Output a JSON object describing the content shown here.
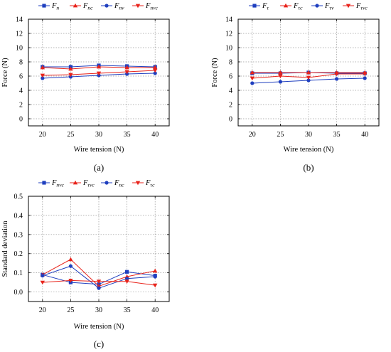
{
  "chart_data": [
    {
      "type": "line",
      "caption": "(a)",
      "xlabel": "Wire tension (N)",
      "ylabel": "Force (N)",
      "x": [
        20,
        25,
        30,
        35,
        40
      ],
      "xlim": [
        17.5,
        42.5
      ],
      "ylim": [
        -1,
        14
      ],
      "yticks": [
        0,
        2,
        4,
        6,
        8,
        10,
        12,
        14
      ],
      "grid": true,
      "legend": "top",
      "series": [
        {
          "name": "F",
          "sub": "n",
          "color": "#1f3fbf",
          "marker": "square",
          "values": [
            7.3,
            7.3,
            7.5,
            7.4,
            7.3
          ]
        },
        {
          "name": "F",
          "sub": "nc",
          "color": "#e8231b",
          "marker": "triangle-up",
          "values": [
            7.2,
            7.0,
            7.3,
            7.2,
            7.2
          ]
        },
        {
          "name": "F",
          "sub": "nv",
          "color": "#1f3fbf",
          "marker": "circle",
          "values": [
            5.7,
            5.9,
            6.1,
            6.3,
            6.4
          ]
        },
        {
          "name": "F",
          "sub": "nvc",
          "color": "#e8231b",
          "marker": "triangle-down",
          "values": [
            6.1,
            6.2,
            6.4,
            6.6,
            6.8
          ]
        }
      ]
    },
    {
      "type": "line",
      "caption": "(b)",
      "xlabel": "Wire tension (N)",
      "ylabel": "Force (N)",
      "x": [
        20,
        25,
        30,
        35,
        40
      ],
      "xlim": [
        17.5,
        42.5
      ],
      "ylim": [
        -1,
        14
      ],
      "yticks": [
        0,
        2,
        4,
        6,
        8,
        10,
        12,
        14
      ],
      "grid": true,
      "legend": "top",
      "series": [
        {
          "name": "F",
          "sub": "τ",
          "color": "#1f3fbf",
          "marker": "square",
          "values": [
            6.4,
            6.4,
            6.5,
            6.4,
            6.4
          ]
        },
        {
          "name": "F",
          "sub": "τc",
          "color": "#e8231b",
          "marker": "triangle-up",
          "values": [
            6.5,
            6.5,
            6.5,
            6.5,
            6.5
          ]
        },
        {
          "name": "F",
          "sub": "τv",
          "color": "#1f3fbf",
          "marker": "circle",
          "values": [
            5.0,
            5.2,
            5.4,
            5.6,
            5.7
          ]
        },
        {
          "name": "F",
          "sub": "τvc",
          "color": "#e8231b",
          "marker": "triangle-down",
          "values": [
            5.7,
            6.0,
            5.8,
            6.3,
            6.3
          ]
        }
      ]
    },
    {
      "type": "line",
      "caption": "(c)",
      "xlabel": "Wire tension (N)",
      "ylabel": "Standard deviation",
      "x": [
        20,
        25,
        30,
        35,
        40
      ],
      "xlim": [
        17.5,
        42.5
      ],
      "ylim": [
        -0.05,
        0.5
      ],
      "yticks": [
        0.0,
        0.1,
        0.2,
        0.3,
        0.4,
        0.5
      ],
      "grid": true,
      "legend": "top",
      "series": [
        {
          "name": "F",
          "sub": "nvc",
          "color": "#1f3fbf",
          "marker": "square",
          "values": [
            0.09,
            0.05,
            0.04,
            0.105,
            0.085
          ]
        },
        {
          "name": "F",
          "sub": "τvc",
          "color": "#e8231b",
          "marker": "triangle-up",
          "values": [
            0.09,
            0.17,
            0.03,
            0.08,
            0.11
          ]
        },
        {
          "name": "F",
          "sub": "nc",
          "color": "#1f3fbf",
          "marker": "circle",
          "values": [
            0.085,
            0.135,
            0.02,
            0.07,
            0.08
          ]
        },
        {
          "name": "F",
          "sub": "τc",
          "color": "#e8231b",
          "marker": "triangle-down",
          "values": [
            0.05,
            0.06,
            0.055,
            0.055,
            0.035
          ]
        }
      ]
    }
  ]
}
